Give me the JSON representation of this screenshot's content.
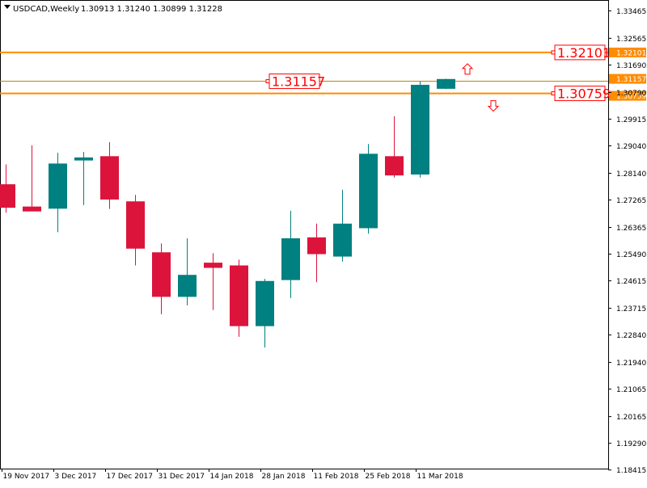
{
  "header": {
    "symbol": "USDCAD,Weekly",
    "ohlc": "1.30913 1.31240 1.30899 1.31228"
  },
  "colors": {
    "bull": "#008080",
    "bear": "#DC143C",
    "level_line": "#FF8C00",
    "label_text": "#FF0000",
    "frame": "#000000"
  },
  "chart_data": {
    "type": "candlestick",
    "timeframe": "Weekly",
    "ylim": [
      1.1846,
      1.3382
    ],
    "y_ticks": [
      "1.33465",
      "1.32565",
      "1.31690",
      "1.30790",
      "1.29915",
      "1.29040",
      "1.28140",
      "1.27265",
      "1.26365",
      "1.25490",
      "1.24615",
      "1.23715",
      "1.22840",
      "1.21940",
      "1.21065",
      "1.20165",
      "1.19290",
      "1.18415"
    ],
    "x_labels": [
      "19 Nov 2017",
      "3 Dec 2017",
      "17 Dec 2017",
      "31 Dec 2017",
      "14 Jan 2018",
      "28 Jan 2018",
      "11 Feb 2018",
      "25 Feb 2018",
      "11 Mar 2018"
    ],
    "candles": [
      {
        "o": 1.2778,
        "h": 1.2843,
        "l": 1.2685,
        "c": 1.2701
      },
      {
        "o": 1.2705,
        "h": 1.2906,
        "l": 1.269,
        "c": 1.2689
      },
      {
        "o": 1.2698,
        "h": 1.2881,
        "l": 1.2621,
        "c": 1.2846
      },
      {
        "o": 1.2856,
        "h": 1.2884,
        "l": 1.271,
        "c": 1.2866
      },
      {
        "o": 1.287,
        "h": 1.2916,
        "l": 1.2697,
        "c": 1.2728
      },
      {
        "o": 1.2722,
        "h": 1.2743,
        "l": 1.2512,
        "c": 1.2567
      },
      {
        "o": 1.2555,
        "h": 1.2584,
        "l": 1.2352,
        "c": 1.2409
      },
      {
        "o": 1.2409,
        "h": 1.2601,
        "l": 1.2381,
        "c": 1.2481
      },
      {
        "o": 1.2521,
        "h": 1.2552,
        "l": 1.2366,
        "c": 1.2504
      },
      {
        "o": 1.2512,
        "h": 1.2531,
        "l": 1.2278,
        "c": 1.2313
      },
      {
        "o": 1.2313,
        "h": 1.2468,
        "l": 1.2243,
        "c": 1.2461
      },
      {
        "o": 1.2464,
        "h": 1.2691,
        "l": 1.2405,
        "c": 1.2601
      },
      {
        "o": 1.2604,
        "h": 1.2649,
        "l": 1.2457,
        "c": 1.2549
      },
      {
        "o": 1.2541,
        "h": 1.276,
        "l": 1.2525,
        "c": 1.2649
      },
      {
        "o": 1.2634,
        "h": 1.291,
        "l": 1.2616,
        "c": 1.2878
      },
      {
        "o": 1.287,
        "h": 1.3001,
        "l": 1.28,
        "c": 1.2807
      },
      {
        "o": 1.281,
        "h": 1.3115,
        "l": 1.28,
        "c": 1.3104
      },
      {
        "o": 1.3091,
        "h": 1.3124,
        "l": 1.309,
        "c": 1.3123
      }
    ],
    "levels": [
      {
        "name": "resistance",
        "value": 1.32101,
        "label": "1.32101",
        "axis_label": "1.32101",
        "arrow": "up"
      },
      {
        "name": "pivot",
        "value": 1.31157,
        "label": "1.31157",
        "axis_label": "1.31157"
      },
      {
        "name": "support",
        "value": 1.30759,
        "label": "1.30759",
        "axis_label": "1.30759",
        "arrow": "down"
      }
    ],
    "current_price": 1.31228
  }
}
